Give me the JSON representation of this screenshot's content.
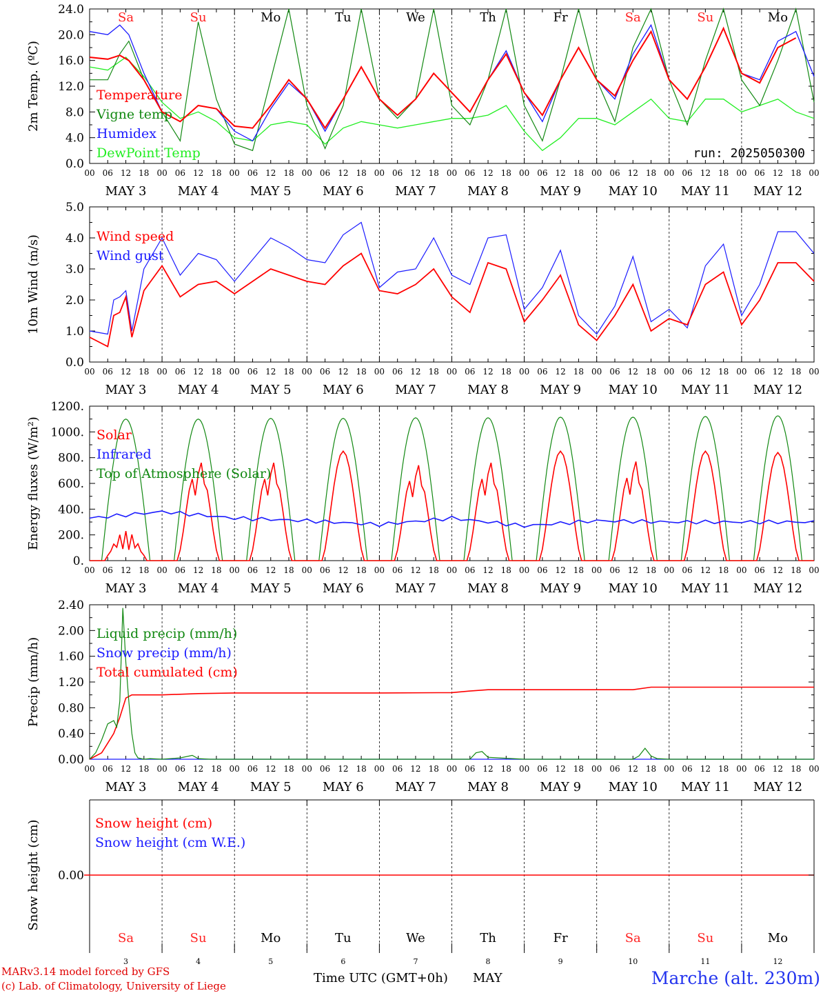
{
  "colors": {
    "temperature": "#ff0000",
    "vigne": "#118811",
    "humidex": "#1a1aff",
    "dewpoint": "#22ee22",
    "wind": "#ff0000",
    "gust": "#1a1aff",
    "solar": "#ff0000",
    "infrared": "#1a1aff",
    "toa": "#118811",
    "liquid": "#118811",
    "snowprecip": "#1a1aff",
    "cumul": "#ff0000",
    "snowheight": "#ff0000",
    "weekend": "#ff2222",
    "weekday": "#000000"
  },
  "x_hours": [
    "00",
    "06",
    "12",
    "18"
  ],
  "x_end_hour": "00",
  "day_labels": [
    "MAY 3",
    "MAY 4",
    "MAY 5",
    "MAY 6",
    "MAY 7",
    "MAY 8",
    "MAY 9",
    "MAY 10",
    "MAY 11",
    "MAY 12"
  ],
  "weekdays": [
    {
      "label": "Sa",
      "weekend": true
    },
    {
      "label": "Su",
      "weekend": true
    },
    {
      "label": "Mo",
      "weekend": false
    },
    {
      "label": "Tu",
      "weekend": false
    },
    {
      "label": "We",
      "weekend": false
    },
    {
      "label": "Th",
      "weekend": false
    },
    {
      "label": "Fr",
      "weekend": false
    },
    {
      "label": "Sa",
      "weekend": true
    },
    {
      "label": "Su",
      "weekend": true
    },
    {
      "label": "Mo",
      "weekend": false
    }
  ],
  "day_numbers": [
    "3",
    "4",
    "5",
    "6",
    "7",
    "8",
    "9",
    "10",
    "11",
    "12"
  ],
  "run_label": "run: 2025050300",
  "x_title": "Time UTC (GMT+0h)",
  "x_month": "MAY",
  "footer": {
    "line1": "MARv3.14 model forced by GFS",
    "line2": "(c) Lab. of Climatology, University of Liege"
  },
  "station": "Marche (alt. 230m)",
  "chart_data": [
    {
      "type": "line",
      "id": "temp",
      "ylabel": "2m Temp. (ºC)",
      "ylim": [
        0,
        24
      ],
      "yticks": [
        "0.0",
        "4.0",
        "8.0",
        "12.0",
        "16.0",
        "20.0",
        "24.0"
      ],
      "x_unit": "hours since MAY 3 00 UTC",
      "legend": [
        "Temperature",
        "Vigne temp",
        "Humidex",
        "DewPoint Temp"
      ],
      "series": [
        {
          "name": "Temperature",
          "x": [
            0,
            6,
            10,
            13,
            18,
            24,
            30,
            36,
            42,
            48,
            54,
            60,
            66,
            72,
            78,
            84,
            90,
            96,
            102,
            108,
            114,
            120,
            126,
            132,
            138,
            144,
            150,
            156,
            162,
            168,
            174,
            180,
            186,
            192,
            198,
            204,
            210,
            216,
            222,
            228,
            234
          ],
          "values": [
            16.5,
            16.2,
            16.8,
            16,
            13,
            8,
            6.5,
            9,
            8.5,
            5.8,
            5.5,
            9,
            13,
            10,
            5.5,
            10,
            15,
            10,
            7.5,
            10,
            14,
            11,
            8,
            13,
            17,
            11,
            7.5,
            13,
            18,
            13,
            10.5,
            16,
            20.5,
            13,
            10,
            15,
            21,
            14,
            12.5,
            18,
            19.5
          ]
        },
        {
          "name": "Vigne temp",
          "x": [
            0,
            6,
            10,
            13,
            18,
            24,
            30,
            36,
            42,
            48,
            54,
            60,
            66,
            72,
            78,
            84,
            90,
            96,
            102,
            108,
            114,
            120,
            126,
            132,
            138,
            144,
            150,
            156,
            162,
            168,
            174,
            180,
            186,
            192,
            198,
            204,
            210,
            216,
            222,
            228,
            234,
            240
          ],
          "values": [
            13,
            13,
            17,
            19,
            13,
            8,
            3.5,
            22,
            10,
            3,
            2,
            13,
            24,
            9,
            2.3,
            9,
            24,
            10,
            7,
            10,
            24,
            9,
            6,
            13,
            24,
            9,
            3.5,
            13,
            24,
            13,
            6.5,
            18,
            24,
            13,
            6,
            16,
            24,
            13,
            9,
            16,
            24,
            9.5
          ]
        },
        {
          "name": "Humidex",
          "x": [
            0,
            6,
            10,
            13,
            18,
            24,
            30,
            36,
            42,
            48,
            54,
            60,
            66,
            72,
            78,
            84,
            90,
            96,
            102,
            108,
            114,
            120,
            126,
            132,
            138,
            144,
            150,
            156,
            162,
            168,
            174,
            180,
            186,
            192,
            198,
            204,
            210,
            216,
            222,
            228,
            234,
            240
          ],
          "values": [
            20.5,
            20,
            21.5,
            20,
            14,
            8,
            6.5,
            9,
            8.5,
            5,
            3.5,
            8.5,
            12.5,
            10,
            5,
            10,
            15,
            10,
            7.5,
            10,
            14,
            11,
            8,
            13,
            17.5,
            11,
            6.5,
            13,
            18,
            13,
            10,
            17,
            21.5,
            13,
            10,
            15,
            21,
            14,
            13,
            19,
            20.5,
            13.5
          ]
        },
        {
          "name": "DewPoint Temp",
          "x": [
            0,
            6,
            12,
            18,
            24,
            30,
            36,
            42,
            48,
            54,
            60,
            66,
            72,
            78,
            84,
            90,
            96,
            102,
            108,
            114,
            120,
            126,
            132,
            138,
            144,
            150,
            156,
            162,
            168,
            174,
            180,
            186,
            192,
            198,
            204,
            210,
            216,
            222,
            228,
            234,
            240
          ],
          "values": [
            15,
            14.5,
            16.5,
            13.5,
            9.5,
            7,
            8,
            6.5,
            4,
            3.5,
            6,
            6.5,
            6,
            3,
            5.5,
            6.5,
            6,
            5.5,
            6,
            6.5,
            7,
            7,
            7.5,
            9,
            5,
            2,
            4,
            7,
            7,
            6,
            8,
            10,
            7,
            6.5,
            10,
            10,
            8,
            9,
            10,
            8,
            7
          ]
        }
      ]
    },
    {
      "type": "line",
      "id": "wind",
      "ylabel": "10m Wind (m/s)",
      "ylim": [
        0,
        5
      ],
      "yticks": [
        "0.0",
        "1.0",
        "2.0",
        "3.0",
        "4.0",
        "5.0"
      ],
      "x_unit": "hours since MAY 3 00 UTC",
      "legend": [
        "Wind speed",
        "Wind gust"
      ],
      "series": [
        {
          "name": "Wind speed",
          "x": [
            0,
            6,
            8,
            10,
            12,
            14,
            18,
            24,
            30,
            36,
            42,
            48,
            54,
            60,
            66,
            72,
            78,
            84,
            90,
            96,
            102,
            108,
            114,
            120,
            126,
            132,
            138,
            144,
            150,
            156,
            162,
            168,
            174,
            180,
            186,
            192,
            198,
            204,
            210,
            216,
            222,
            228,
            234,
            240
          ],
          "values": [
            0.8,
            0.5,
            1.5,
            1.6,
            2.1,
            0.8,
            2.3,
            3.1,
            2.1,
            2.5,
            2.6,
            2.2,
            2.6,
            3,
            2.8,
            2.6,
            2.5,
            3.1,
            3.5,
            2.3,
            2.2,
            2.5,
            3,
            2.1,
            1.6,
            3.2,
            3,
            1.3,
            2,
            2.8,
            1.2,
            0.7,
            1.5,
            2.5,
            1,
            1.4,
            1.2,
            2.5,
            2.9,
            1.2,
            2,
            3.2,
            3.2,
            2.6
          ]
        },
        {
          "name": "Wind gust",
          "x": [
            0,
            6,
            8,
            10,
            12,
            14,
            18,
            24,
            30,
            36,
            42,
            48,
            54,
            60,
            66,
            72,
            78,
            84,
            90,
            96,
            102,
            108,
            114,
            120,
            126,
            132,
            138,
            144,
            150,
            156,
            162,
            168,
            174,
            180,
            186,
            192,
            198,
            204,
            210,
            216,
            222,
            228,
            234,
            240
          ],
          "values": [
            1,
            0.9,
            2,
            2.1,
            2.3,
            1,
            3,
            4,
            2.8,
            3.5,
            3.3,
            2.6,
            3.3,
            4,
            3.7,
            3.3,
            3.2,
            4.1,
            4.5,
            2.4,
            2.9,
            3,
            4,
            2.8,
            2.5,
            4,
            4.1,
            1.7,
            2.4,
            3.6,
            1.5,
            0.9,
            1.8,
            3.4,
            1.3,
            1.7,
            1.1,
            3.1,
            3.8,
            1.5,
            2.5,
            4.2,
            4.2,
            3.5
          ]
        }
      ]
    },
    {
      "type": "line",
      "id": "energy",
      "ylabel": "Energy fluxes (W/m²)",
      "ylim": [
        0,
        1200
      ],
      "yticks": [
        "0.",
        "200.",
        "400.",
        "600.",
        "800.",
        "1000.",
        "1200."
      ],
      "x_unit": "hours since MAY 3 00 UTC",
      "legend": [
        "Solar",
        "Infrared",
        "Top of Atmosphere (Solar)"
      ],
      "toa_peak": [
        1100,
        1100,
        1105,
        1105,
        1110,
        1110,
        1115,
        1115,
        1120,
        1125
      ],
      "solar_peak": [
        230,
        790,
        790,
        850,
        770,
        790,
        850,
        800,
        850,
        840
      ],
      "infrared": [
        330,
        380,
        330,
        310,
        280,
        330,
        270,
        310,
        300,
        300
      ]
    },
    {
      "type": "line",
      "id": "precip",
      "ylabel": "Precip (mm/h)",
      "ylim": [
        0,
        2.4
      ],
      "yticks": [
        "0.00",
        "0.40",
        "0.80",
        "1.20",
        "1.60",
        "2.00",
        "2.40"
      ],
      "x_unit": "hours since MAY 3 00 UTC",
      "legend": [
        "Liquid precip (mm/h)",
        "Snow precip (mm/h)",
        "Total cumulated (cm)"
      ],
      "series": [
        {
          "name": "Liquid precip (mm/h)",
          "x": [
            0,
            2,
            4,
            6,
            8,
            9,
            10,
            11,
            12,
            13,
            14,
            15,
            16,
            18,
            20,
            24,
            30,
            34,
            36,
            40,
            48,
            96,
            120,
            126,
            128,
            130,
            132,
            144,
            180,
            182,
            184,
            186,
            188,
            192,
            240
          ],
          "values": [
            0,
            0.1,
            0.3,
            0.55,
            0.6,
            0.5,
            0.9,
            2.35,
            1.5,
            0.9,
            0.4,
            0.1,
            0.02,
            0,
            0.01,
            0,
            0.02,
            0.06,
            0.01,
            0,
            0,
            0,
            0,
            0,
            0.1,
            0.12,
            0.03,
            0,
            0,
            0.05,
            0.17,
            0.05,
            0.01,
            0,
            0
          ]
        },
        {
          "name": "Snow precip (mm/h)",
          "x": [
            0,
            240
          ],
          "values": [
            0,
            0
          ]
        },
        {
          "name": "Total cumulated (cm)",
          "x": [
            0,
            4,
            6,
            8,
            10,
            12,
            14,
            16,
            18,
            24,
            36,
            48,
            72,
            96,
            120,
            126,
            132,
            144,
            168,
            180,
            186,
            192,
            216,
            240
          ],
          "values": [
            0,
            0.1,
            0.25,
            0.4,
            0.65,
            0.95,
            1,
            1,
            1,
            1,
            1.02,
            1.03,
            1.03,
            1.03,
            1.035,
            1.06,
            1.08,
            1.08,
            1.08,
            1.08,
            1.12,
            1.12,
            1.12,
            1.12
          ]
        }
      ]
    },
    {
      "type": "line",
      "id": "snow",
      "ylabel": "Snow height (cm)",
      "yticks": [
        "0.00"
      ],
      "legend": [
        "Snow height (cm)",
        "Snow height (cm W.E.)"
      ],
      "series": [
        {
          "name": "Snow height (cm)",
          "x": [
            0,
            240
          ],
          "values": [
            0,
            0
          ]
        },
        {
          "name": "Snow height (cm W.E.)",
          "x": [
            0,
            240
          ],
          "values": [
            0,
            0
          ]
        }
      ]
    }
  ]
}
